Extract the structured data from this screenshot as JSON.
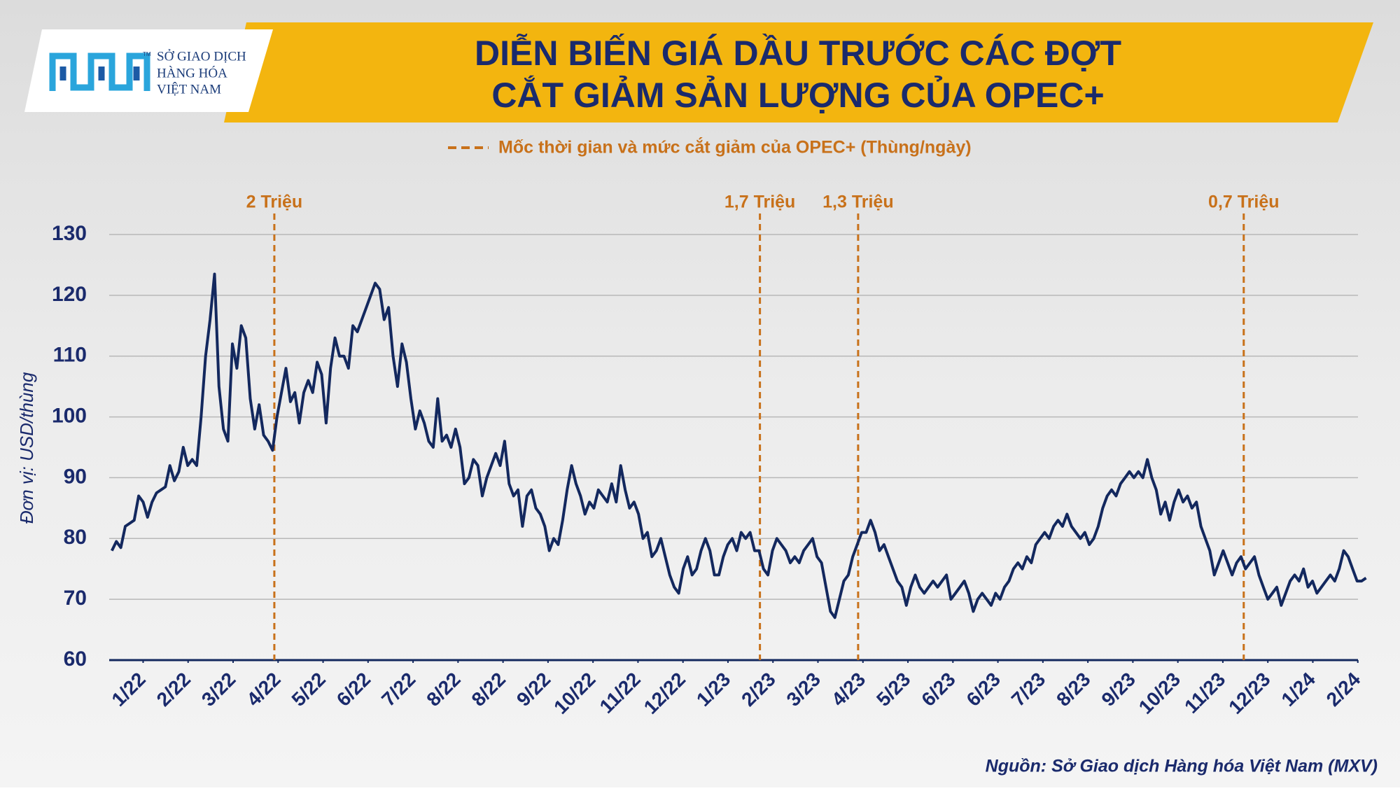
{
  "header": {
    "logo_mark": "TM",
    "logo_lines": [
      "SỞ GIAO DỊCH",
      "HÀNG HÓA",
      "VIỆT NAM"
    ]
  },
  "chart_data": {
    "type": "line",
    "title": [
      "DIỄN BIẾN GIÁ DẦU TRƯỚC CÁC ĐỢT",
      "CẮT GIẢM SẢN LƯỢNG CỦA OPEC+"
    ],
    "annotation_legend": "Mốc thời gian và mức cắt giảm của OPEC+ (Thùng/ngày)",
    "annotation_color": "#c8711a",
    "annotations": [
      {
        "label": "2 Triệu",
        "x": 36.4
      },
      {
        "label": "1,7 Triệu",
        "x": 145.2
      },
      {
        "label": "1,3 Triệu",
        "x": 167.2
      },
      {
        "label": "0,7 Triệu",
        "x": 253.6
      }
    ],
    "y_label": "Đơn vị: USD/thùng",
    "source": "Nguồn: Sở Giao dịch Hàng hóa Việt Nam (MXV)",
    "ylim": [
      60,
      130
    ],
    "yticks": [
      60,
      70,
      80,
      90,
      100,
      110,
      120,
      130
    ],
    "grid": true,
    "xlim": [
      -0.6,
      279.2
    ],
    "xticks": [
      {
        "value": 7,
        "label": "1/22"
      },
      {
        "value": 17.08,
        "label": "2/22"
      },
      {
        "value": 27.16,
        "label": "3/22"
      },
      {
        "value": 37.24,
        "label": "4/22"
      },
      {
        "value": 47.32,
        "label": "5/22"
      },
      {
        "value": 57.4,
        "label": "6/22"
      },
      {
        "value": 67.48,
        "label": "7/22"
      },
      {
        "value": 77.56,
        "label": "8/22"
      },
      {
        "value": 87.64,
        "label": "8/22"
      },
      {
        "value": 97.72,
        "label": "9/22"
      },
      {
        "value": 107.8,
        "label": "10/22"
      },
      {
        "value": 117.88,
        "label": "11/22"
      },
      {
        "value": 127.96,
        "label": "12/22"
      },
      {
        "value": 138.04,
        "label": "1/23"
      },
      {
        "value": 148.12,
        "label": "2/23"
      },
      {
        "value": 158.2,
        "label": "3/23"
      },
      {
        "value": 168.28,
        "label": "4/23"
      },
      {
        "value": 178.36,
        "label": "5/23"
      },
      {
        "value": 188.44,
        "label": "6/23"
      },
      {
        "value": 198.52,
        "label": "6/23"
      },
      {
        "value": 208.6,
        "label": "7/23"
      },
      {
        "value": 218.68,
        "label": "8/23"
      },
      {
        "value": 228.76,
        "label": "9/23"
      },
      {
        "value": 238.84,
        "label": "10/23"
      },
      {
        "value": 248.92,
        "label": "11/23"
      },
      {
        "value": 259,
        "label": "12/23"
      },
      {
        "value": 269.08,
        "label": "1/24"
      },
      {
        "value": 279.16,
        "label": "2/24"
      }
    ],
    "series": [
      {
        "color": "#13285e",
        "values": [
          78,
          79.5,
          78.5,
          82,
          82.5,
          83,
          87,
          86,
          83.5,
          86,
          87.5,
          88,
          88.5,
          92,
          89.5,
          91,
          95,
          92,
          93,
          92,
          100,
          110,
          116,
          123.5,
          105,
          98,
          96,
          112,
          108,
          115,
          113,
          103,
          98,
          102,
          97,
          96,
          94.5,
          100,
          104,
          108,
          102.5,
          104,
          99,
          104,
          106,
          104,
          109,
          107,
          99,
          108,
          113,
          110,
          110,
          108,
          115,
          114,
          116,
          118,
          120,
          122,
          121,
          116,
          118,
          110,
          105,
          112,
          109,
          103,
          98,
          101,
          99,
          96,
          95,
          103,
          96,
          97,
          95,
          98,
          95,
          89,
          90,
          93,
          92,
          87,
          90,
          92,
          94,
          92,
          96,
          89,
          87,
          88,
          82,
          87,
          88,
          85,
          84,
          82,
          78,
          80,
          79,
          83,
          88,
          92,
          89,
          87,
          84,
          86,
          85,
          88,
          87,
          86,
          89,
          86,
          92,
          88,
          85,
          86,
          84,
          80,
          81,
          77,
          78,
          80,
          77,
          74,
          72,
          71,
          75,
          77,
          74,
          75,
          78,
          80,
          78,
          74,
          74,
          77,
          79,
          80,
          78,
          81,
          80,
          81,
          78,
          78,
          75,
          74,
          78,
          80,
          79,
          78,
          76,
          77,
          76,
          78,
          79,
          80,
          77,
          76,
          72,
          68,
          67,
          70,
          73,
          74,
          77,
          79,
          81,
          81,
          83,
          81,
          78,
          79,
          77,
          75,
          73,
          72,
          69,
          72,
          74,
          72,
          71,
          72,
          73,
          72,
          73,
          74,
          70,
          71,
          72,
          73,
          71,
          68,
          70,
          71,
          70,
          69,
          71,
          70,
          72,
          73,
          75,
          76,
          75,
          77,
          76,
          79,
          80,
          81,
          80,
          82,
          83,
          82,
          84,
          82,
          81,
          80,
          81,
          79,
          80,
          82,
          85,
          87,
          88,
          87,
          89,
          90,
          91,
          90,
          91,
          90,
          93,
          90,
          88,
          84,
          86,
          83,
          86,
          88,
          86,
          87,
          85,
          86,
          82,
          80,
          78,
          74,
          76,
          78,
          76,
          74,
          76,
          77,
          75,
          76,
          77,
          74,
          72,
          70,
          71,
          72,
          69,
          71,
          73,
          74,
          73,
          75,
          72,
          73,
          71,
          72,
          73,
          74,
          73,
          75,
          78,
          77,
          75,
          73,
          73,
          73.5
        ]
      }
    ]
  }
}
